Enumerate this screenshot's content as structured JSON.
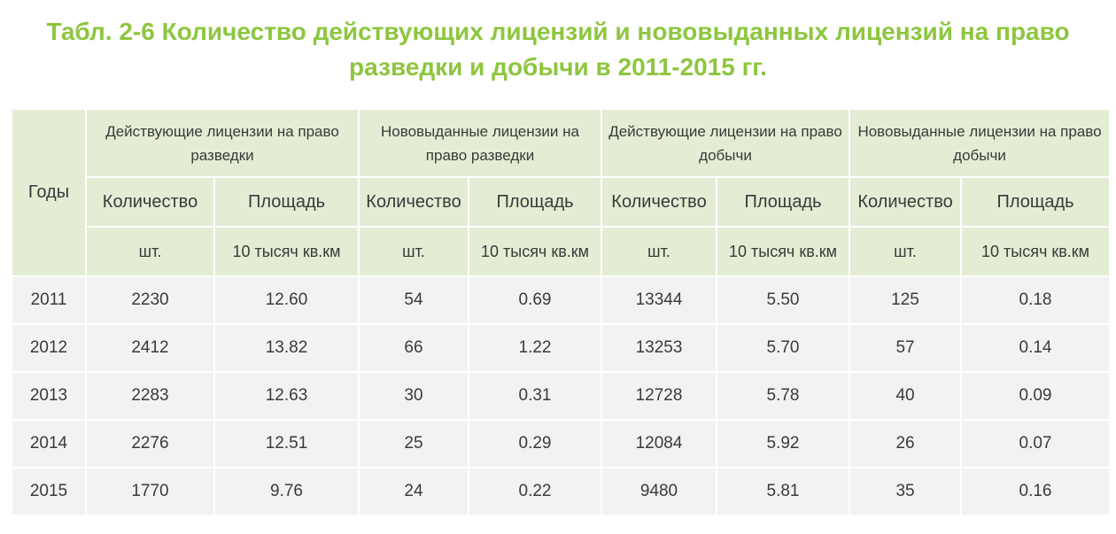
{
  "title": {
    "line1": "Табл. 2-6 Количество действующих лицензий и нововыданных лицензий  на право",
    "line2": "разведки и добычи в 2011-2015 гг."
  },
  "table": {
    "years_header": "Годы",
    "groups": [
      "Действующие лицензии на право разведки",
      "Нововыданные лицензии на право разведки",
      "Действующие лицензии на право добычи",
      "Нововыданные лицензии на право добычи"
    ],
    "sub_headers": [
      "Количество",
      "Площадь",
      "Количество",
      "Площадь",
      "Количество",
      "Площадь",
      "Количество",
      "Площадь"
    ],
    "units": [
      "шт.",
      "10 тысяч кв.км",
      "шт.",
      "10 тысяч кв.км",
      "шт.",
      "10 тысяч кв.км",
      "шт.",
      "10 тысяч кв.км"
    ],
    "rows": [
      {
        "year": "2011",
        "values": [
          "2230",
          "12.60",
          "54",
          "0.69",
          "13344",
          "5.50",
          "125",
          "0.18"
        ]
      },
      {
        "year": "2012",
        "values": [
          "2412",
          "13.82",
          "66",
          "1.22",
          "13253",
          "5.70",
          "57",
          "0.14"
        ]
      },
      {
        "year": "2013",
        "values": [
          "2283",
          "12.63",
          "30",
          "0.31",
          "12728",
          "5.78",
          "40",
          "0.09"
        ]
      },
      {
        "year": "2014",
        "values": [
          "2276",
          "12.51",
          "25",
          "0.29",
          "12084",
          "5.92",
          "26",
          "0.07"
        ]
      },
      {
        "year": "2015",
        "values": [
          "1770",
          "9.76",
          "24",
          "0.22",
          "9480",
          "5.81",
          "35",
          "0.16"
        ]
      }
    ]
  },
  "colors": {
    "title": "#8dc63f",
    "header_bg": "#e3edd4",
    "body_bg": "#f2f2f2"
  }
}
